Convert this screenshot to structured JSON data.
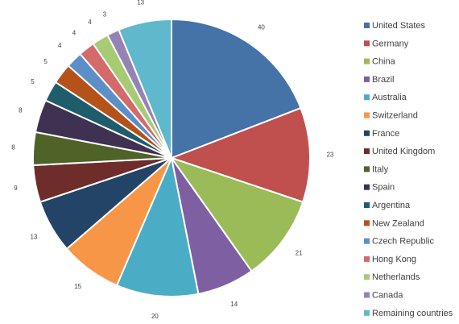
{
  "chart_data": {
    "type": "pie",
    "categories": [
      "United States",
      "Germany",
      "China",
      "Brazil",
      "Australia",
      "Switzerland",
      "France",
      "United Kingdom",
      "Italy",
      "Spain",
      "Argentina",
      "New Zealand",
      "Czech Republic",
      "Hong Kong",
      "Netherlands",
      "Canada",
      "Remaining countries"
    ],
    "values": [
      40,
      23,
      21,
      14,
      20,
      15,
      13,
      9,
      8,
      8,
      5,
      5,
      4,
      4,
      4,
      3,
      13
    ],
    "colors": [
      "#4572A7",
      "#C0504D",
      "#9BBB59",
      "#7E5FA2",
      "#4BACC6",
      "#F79646",
      "#234466",
      "#6E2C2B",
      "#4F6228",
      "#3F3151",
      "#1F5C6C",
      "#B5521A",
      "#5C8FC8",
      "#D46A6A",
      "#A6CB74",
      "#9584B3",
      "#5FB8CB"
    ],
    "slice_order": [
      0,
      1,
      2,
      3,
      4,
      5,
      6,
      7,
      8,
      9,
      10,
      11,
      12,
      13,
      14,
      15,
      16
    ],
    "legend_position": "right",
    "data_labels": true,
    "title": ""
  }
}
